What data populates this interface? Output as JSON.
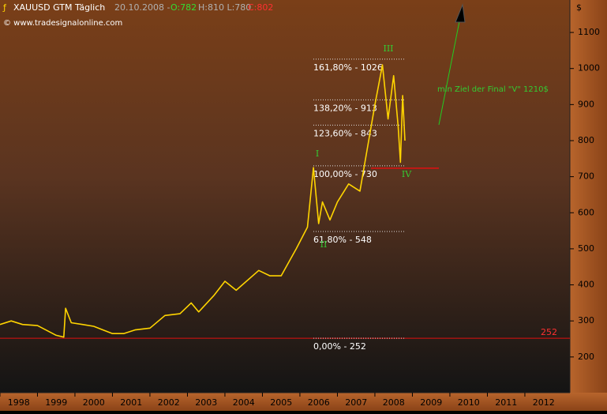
{
  "header": {
    "symbol": "XAUUSD GTM Täglich",
    "date": "20.10.2008 -",
    "open": "O:782",
    "high_low": "H:810 L:780",
    "close": "C:802",
    "copyright": "© www.tradesignalonline.com"
  },
  "chart_data": {
    "type": "line",
    "currency": "$",
    "color": "#ffd400",
    "x": [
      1998.0,
      1998.3,
      1998.6,
      1999.0,
      1999.5,
      1999.7,
      1999.75,
      1999.9,
      2000.2,
      2000.5,
      2001.0,
      2001.3,
      2001.6,
      2002.0,
      2002.4,
      2002.8,
      2003.1,
      2003.3,
      2003.7,
      2004.0,
      2004.3,
      2004.9,
      2005.2,
      2005.5,
      2005.9,
      2006.2,
      2006.36,
      2006.5,
      2006.6,
      2006.8,
      2007.0,
      2007.3,
      2007.6,
      2007.8,
      2008.0,
      2008.2,
      2008.35,
      2008.5,
      2008.62,
      2008.68,
      2008.74,
      2008.8
    ],
    "values": [
      290,
      300,
      290,
      287,
      260,
      255,
      335,
      295,
      290,
      285,
      265,
      265,
      275,
      280,
      315,
      320,
      350,
      325,
      370,
      410,
      385,
      440,
      425,
      425,
      500,
      560,
      725,
      570,
      630,
      580,
      630,
      680,
      660,
      780,
      900,
      1010,
      860,
      980,
      840,
      740,
      925,
      800
    ],
    "xlim": [
      1998.0,
      2013.2
    ],
    "ylim": [
      101,
      1190
    ],
    "yticks": [
      200,
      300,
      400,
      500,
      600,
      700,
      800,
      900,
      1000,
      1100
    ],
    "xticks": [
      {
        "value": 1998.5,
        "label": "1998"
      },
      {
        "value": 1999.5,
        "label": "1999"
      },
      {
        "value": 2000.5,
        "label": "2000"
      },
      {
        "value": 2001.5,
        "label": "2001"
      },
      {
        "value": 2002.5,
        "label": "2002"
      },
      {
        "value": 2003.5,
        "label": "2003"
      },
      {
        "value": 2004.5,
        "label": "2004"
      },
      {
        "value": 2005.5,
        "label": "2005"
      },
      {
        "value": 2006.5,
        "label": "2006"
      },
      {
        "value": 2007.5,
        "label": "2007"
      },
      {
        "value": 2008.5,
        "label": "2008"
      },
      {
        "value": 2009.5,
        "label": "2009"
      },
      {
        "value": 2010.5,
        "label": "2010"
      },
      {
        "value": 2011.5,
        "label": "2011"
      },
      {
        "value": 2012.5,
        "label": "2012"
      }
    ],
    "fib_levels": [
      {
        "value": 1026,
        "label": "161,80% - 1026"
      },
      {
        "value": 913,
        "label": "138,20% - 913"
      },
      {
        "value": 843,
        "label": "123,60% - 843"
      },
      {
        "value": 730,
        "label": "100,00% - 730"
      },
      {
        "value": 548,
        "label": "61,80% - 548"
      },
      {
        "value": 252,
        "label": "0,00% - 252"
      }
    ],
    "support_level": 252,
    "wave_labels": [
      "I",
      "II",
      "III",
      "IV"
    ],
    "target_note": "min Ziel der Final \"V\" 1210$"
  }
}
